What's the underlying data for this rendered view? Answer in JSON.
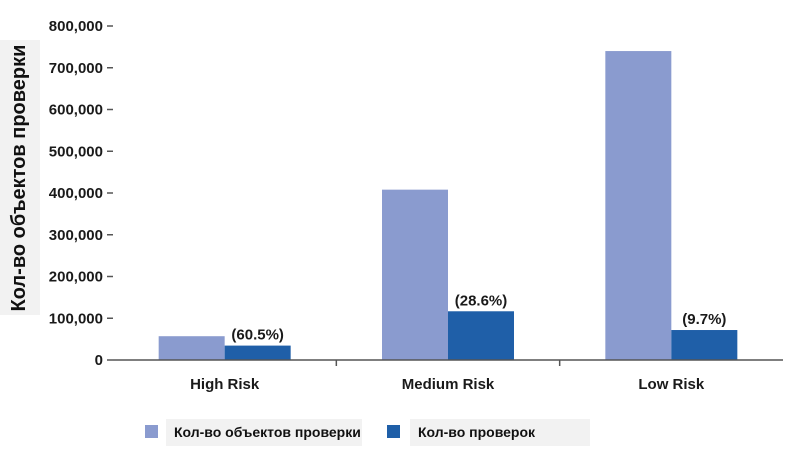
{
  "chart_data": {
    "type": "bar",
    "categories": [
      "High Risk",
      "Medium Risk",
      "Low Risk"
    ],
    "series": [
      {
        "name": "Кол-во объектов проверки",
        "values": [
          57000,
          408000,
          740000
        ],
        "color": "#8a9bcf"
      },
      {
        "name": "Кол-во проверок",
        "values": [
          34500,
          116700,
          71800
        ],
        "color": "#1f5fa8"
      }
    ],
    "data_labels": [
      "(60.5%)",
      "(28.6%)",
      "(9.7%)"
    ],
    "ylabel": "Кол-во объектов проверки",
    "xlabel": "",
    "ylim": [
      0,
      800000
    ],
    "yticks": [
      "0",
      "100,000",
      "200,000",
      "300,000",
      "400,000",
      "500,000",
      "600,000",
      "700,000",
      "800,000"
    ],
    "grid": false,
    "legend_position": "bottom"
  }
}
